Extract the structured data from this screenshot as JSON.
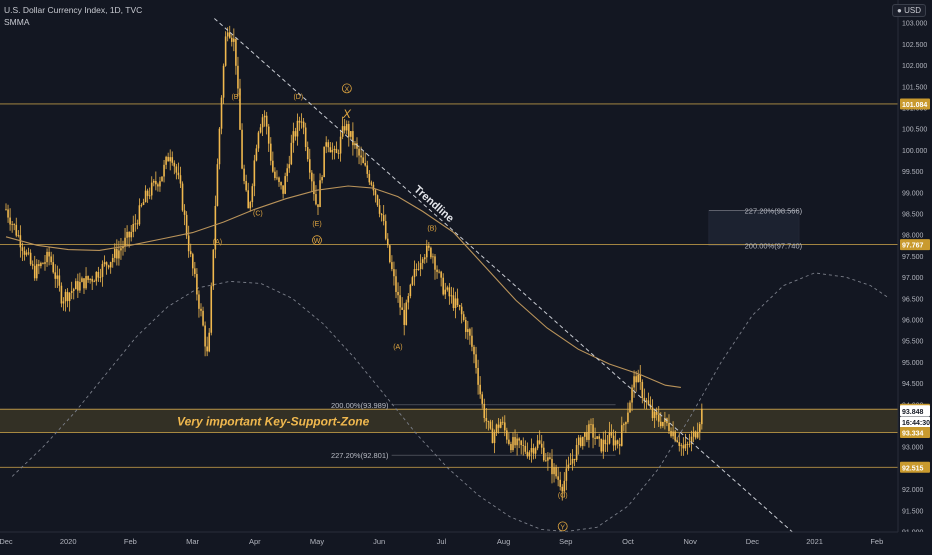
{
  "header": {
    "symbol_line": "U.S. Dollar Currency Index, 1D, TVC",
    "indicator": "SMMA",
    "currency_button": "USD"
  },
  "colors": {
    "background": "#131722",
    "candle": "#f0b84e",
    "level_line": "#c9a24a",
    "zone_fill": "#3a3526",
    "zone_text": "#f0b84e",
    "smma": "#b9935a",
    "trendline": "#c9ccd3",
    "arc": "#7b7f8a",
    "price_tag_gold": "#c99a2e",
    "price_tag_white": "#ffffff",
    "label_orange": "#e0a640"
  },
  "chart_data": {
    "type": "candlestick",
    "ylim": [
      90.8,
      103.3
    ],
    "price_axis_ticks": [
      "103.000",
      "102.500",
      "102.000",
      "101.500",
      "101.000",
      "100.500",
      "100.000",
      "99.500",
      "99.000",
      "98.500",
      "98.000",
      "97.500",
      "97.000",
      "96.500",
      "96.000",
      "95.500",
      "95.000",
      "94.500",
      "94.000",
      "93.500",
      "93.000",
      "92.500",
      "92.000",
      "91.500",
      "91.000"
    ],
    "time_axis_labels": [
      "Dec",
      "2020",
      "Feb",
      "Mar",
      "Apr",
      "May",
      "Jun",
      "Jul",
      "Aug",
      "Sep",
      "Oct",
      "Nov",
      "Dec",
      "2021",
      "Feb"
    ],
    "price_tags": [
      {
        "label": "101.084",
        "price": 101.084,
        "style": "gold"
      },
      {
        "label": "97.767",
        "price": 97.767,
        "style": "gold"
      },
      {
        "label": "93.884",
        "price": 93.884,
        "style": "gold"
      },
      {
        "label": "93.848",
        "price": 93.848,
        "style": "white"
      },
      {
        "label": "16:44:30",
        "price": 93.58,
        "style": "white"
      },
      {
        "label": "93.334",
        "price": 93.334,
        "style": "gold"
      },
      {
        "label": "92.515",
        "price": 92.515,
        "style": "gold"
      }
    ],
    "horizontal_levels": [
      101.084,
      97.767,
      93.884,
      93.334,
      92.515
    ],
    "zone": {
      "top": 93.884,
      "bottom": 93.334,
      "label": "Very important Key-Support-Zone"
    },
    "fib_labels": [
      {
        "text": "227.20%(98.566)",
        "price": 98.566,
        "t": 0.9
      },
      {
        "text": "200.00%(97.740)",
        "price": 97.74,
        "t": 0.9
      },
      {
        "text": "200.00%(93.989)",
        "price": 93.989,
        "t": 0.66
      },
      {
        "text": "227.20%(92.801)",
        "price": 92.801,
        "t": 0.66
      }
    ],
    "trendline": {
      "label": "Trendline",
      "start": {
        "t": 3.35,
        "price": 103.1
      },
      "end": {
        "t": 12.75,
        "price": 90.85
      }
    },
    "wave_labels": [
      {
        "text": "(B)",
        "t": 3.7,
        "price": 101.2
      },
      {
        "text": "(D)",
        "t": 4.7,
        "price": 101.2
      },
      {
        "text": "X",
        "t": 5.48,
        "price": 101.38,
        "circled": true
      },
      {
        "text": "X",
        "t": 5.48,
        "price": 100.75,
        "italic": true
      },
      {
        "text": "(C)",
        "t": 4.05,
        "price": 98.45
      },
      {
        "text": "(E)",
        "t": 5.0,
        "price": 98.2
      },
      {
        "text": "(A)",
        "t": 3.4,
        "price": 97.78
      },
      {
        "text": "W",
        "t": 5.0,
        "price": 97.8,
        "circled": true
      },
      {
        "text": "(B)",
        "t": 6.85,
        "price": 98.1
      },
      {
        "text": "(A)",
        "t": 6.3,
        "price": 95.3
      },
      {
        "text": "(C)",
        "t": 8.95,
        "price": 91.8
      },
      {
        "text": "Y",
        "t": 8.95,
        "price": 91.05,
        "circled": true
      }
    ],
    "smma": [
      [
        0.0,
        97.95
      ],
      [
        0.5,
        97.75
      ],
      [
        1.0,
        97.65
      ],
      [
        1.5,
        97.63
      ],
      [
        2.0,
        97.75
      ],
      [
        2.5,
        97.9
      ],
      [
        3.0,
        98.05
      ],
      [
        3.5,
        98.3
      ],
      [
        4.0,
        98.6
      ],
      [
        4.5,
        98.85
      ],
      [
        5.0,
        99.05
      ],
      [
        5.5,
        99.15
      ],
      [
        5.9,
        99.1
      ],
      [
        6.3,
        98.9
      ],
      [
        6.7,
        98.55
      ],
      [
        7.2,
        98.05
      ],
      [
        7.7,
        97.25
      ],
      [
        8.2,
        96.45
      ],
      [
        8.7,
        95.8
      ],
      [
        9.2,
        95.3
      ],
      [
        9.7,
        94.95
      ],
      [
        10.2,
        94.7
      ],
      [
        10.6,
        94.45
      ],
      [
        10.85,
        94.4
      ]
    ],
    "arc_left": [
      [
        0.1,
        92.3
      ],
      [
        0.6,
        93.0
      ],
      [
        1.1,
        93.8
      ],
      [
        1.6,
        94.7
      ],
      [
        2.1,
        95.6
      ],
      [
        2.6,
        96.3
      ],
      [
        3.1,
        96.75
      ],
      [
        3.6,
        96.9
      ],
      [
        4.1,
        96.85
      ],
      [
        4.6,
        96.5
      ],
      [
        5.1,
        95.9
      ],
      [
        5.6,
        95.1
      ],
      [
        6.1,
        94.2
      ],
      [
        6.6,
        93.3
      ],
      [
        7.1,
        92.5
      ],
      [
        7.6,
        91.85
      ],
      [
        8.1,
        91.35
      ],
      [
        8.6,
        91.05
      ],
      [
        9.0,
        91.0
      ],
      [
        9.5,
        91.1
      ],
      [
        10.0,
        91.6
      ],
      [
        10.5,
        92.5
      ]
    ],
    "arc_right": [
      [
        10.5,
        92.5
      ],
      [
        11.0,
        93.7
      ],
      [
        11.5,
        95.0
      ],
      [
        12.0,
        96.1
      ],
      [
        12.5,
        96.8
      ],
      [
        13.0,
        97.1
      ],
      [
        13.5,
        97.0
      ],
      [
        13.9,
        96.8
      ],
      [
        14.2,
        96.5
      ]
    ],
    "price_path": [
      [
        0.0,
        98.6
      ],
      [
        0.25,
        97.8
      ],
      [
        0.45,
        97.1
      ],
      [
        0.7,
        97.5
      ],
      [
        0.9,
        96.5
      ],
      [
        1.15,
        96.8
      ],
      [
        1.4,
        97.0
      ],
      [
        1.6,
        97.3
      ],
      [
        1.8,
        97.6
      ],
      [
        2.0,
        98.0
      ],
      [
        2.25,
        98.9
      ],
      [
        2.5,
        99.4
      ],
      [
        2.65,
        100.0
      ],
      [
        2.8,
        99.1
      ],
      [
        2.95,
        97.6
      ],
      [
        3.15,
        96.0
      ],
      [
        3.25,
        95.0
      ],
      [
        3.35,
        98.3
      ],
      [
        3.45,
        101.0
      ],
      [
        3.55,
        103.0
      ],
      [
        3.68,
        102.5
      ],
      [
        3.8,
        99.5
      ],
      [
        3.9,
        98.5
      ],
      [
        4.05,
        100.5
      ],
      [
        4.15,
        100.9
      ],
      [
        4.3,
        99.4
      ],
      [
        4.45,
        99.0
      ],
      [
        4.6,
        100.2
      ],
      [
        4.75,
        100.8
      ],
      [
        4.9,
        99.5
      ],
      [
        5.0,
        98.6
      ],
      [
        5.15,
        100.3
      ],
      [
        5.3,
        99.8
      ],
      [
        5.45,
        100.6
      ],
      [
        5.6,
        100.1
      ],
      [
        5.75,
        99.6
      ],
      [
        5.9,
        99.2
      ],
      [
        6.05,
        98.4
      ],
      [
        6.15,
        97.5
      ],
      [
        6.3,
        96.5
      ],
      [
        6.4,
        96.0
      ],
      [
        6.55,
        97.0
      ],
      [
        6.7,
        97.6
      ],
      [
        6.85,
        97.6
      ],
      [
        7.0,
        96.8
      ],
      [
        7.15,
        96.5
      ],
      [
        7.3,
        96.2
      ],
      [
        7.45,
        95.6
      ],
      [
        7.55,
        95.0
      ],
      [
        7.65,
        94.0
      ],
      [
        7.8,
        93.2
      ],
      [
        7.95,
        93.6
      ],
      [
        8.1,
        93.1
      ],
      [
        8.25,
        93.0
      ],
      [
        8.4,
        92.9
      ],
      [
        8.55,
        93.1
      ],
      [
        8.7,
        92.7
      ],
      [
        8.85,
        92.3
      ],
      [
        8.95,
        92.1
      ],
      [
        9.1,
        92.7
      ],
      [
        9.25,
        93.2
      ],
      [
        9.4,
        93.4
      ],
      [
        9.55,
        93.0
      ],
      [
        9.7,
        93.2
      ],
      [
        9.85,
        93.1
      ],
      [
        10.0,
        93.9
      ],
      [
        10.12,
        94.7
      ],
      [
        10.25,
        94.2
      ],
      [
        10.4,
        93.7
      ],
      [
        10.55,
        93.6
      ],
      [
        10.65,
        93.5
      ],
      [
        10.8,
        93.2
      ],
      [
        10.9,
        92.9
      ],
      [
        11.0,
        93.1
      ],
      [
        11.1,
        93.4
      ],
      [
        11.2,
        93.9
      ]
    ]
  }
}
